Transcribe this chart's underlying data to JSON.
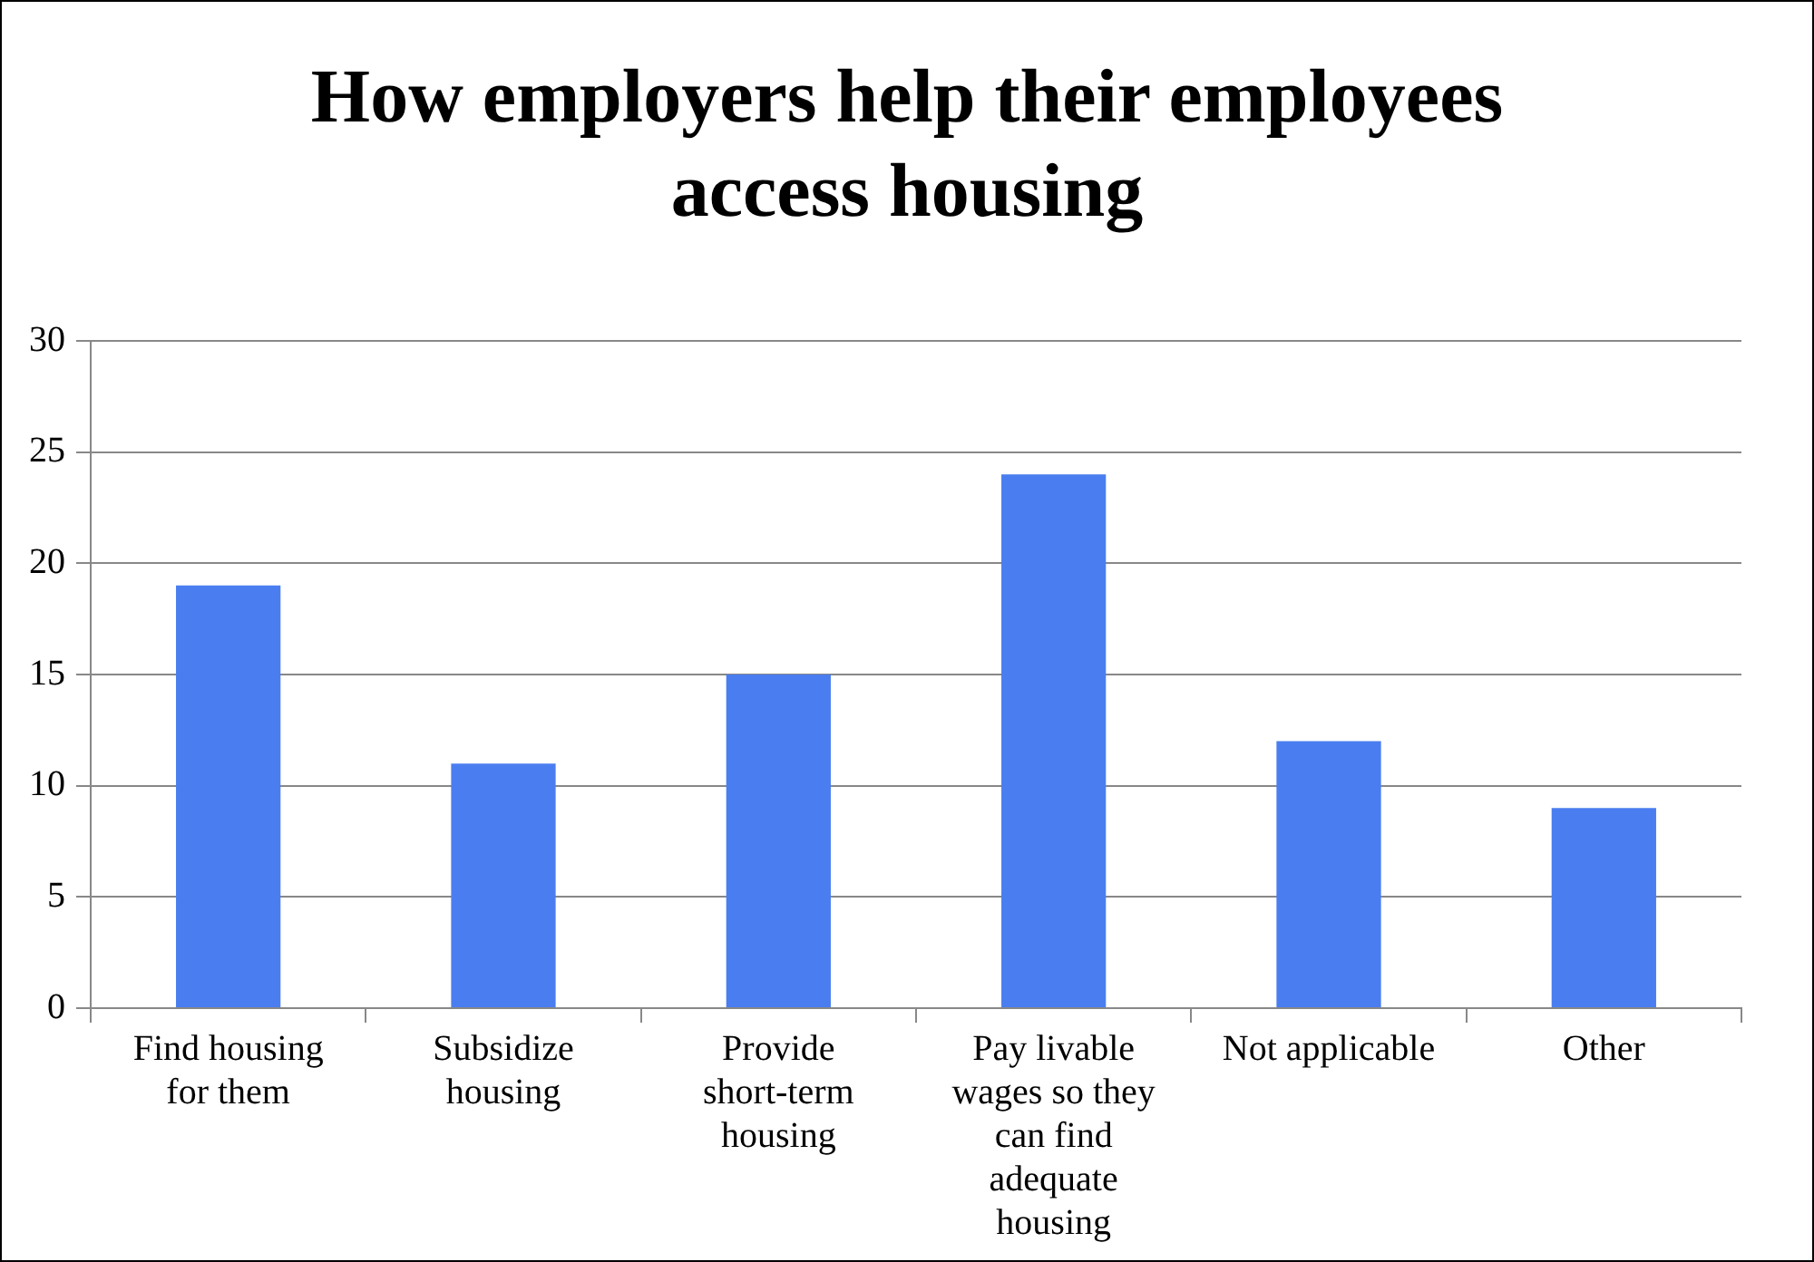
{
  "chart_data": {
    "type": "bar",
    "title": "How employers help their employees access housing",
    "categories": [
      "Find housing for them",
      "Subsidize housing",
      "Provide short-term housing",
      "Pay livable wages so they can find adequate housing",
      "Not applicable",
      "Other"
    ],
    "values": [
      19,
      11,
      15,
      24,
      12,
      9
    ],
    "color": "#4a7ef0",
    "ylim": [
      0,
      30
    ],
    "yticks": [
      0,
      5,
      10,
      15,
      20,
      25,
      30
    ],
    "grid": "y",
    "legend": false
  }
}
